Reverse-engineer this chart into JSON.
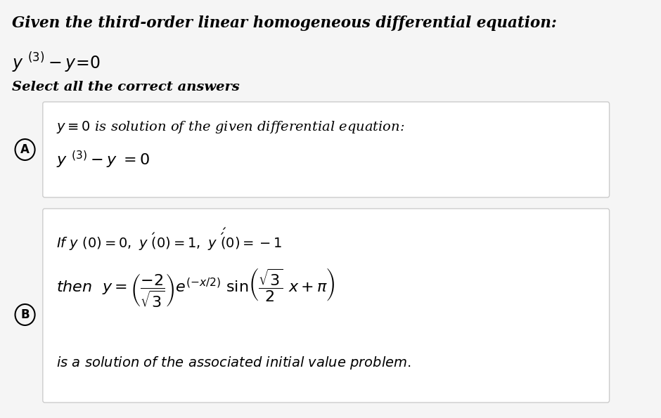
{
  "background_color": "#f5f5f5",
  "panel_color": "#ffffff",
  "title": "Given the third-order linear homogeneous differential equation:",
  "equation_main": "$y^{(3)} - y = 0$",
  "select_text": "Select all the correct answers",
  "circle_A": "A",
  "circle_B": "B",
  "panel_A_line1": "$y \\equiv 0$ is solution of the given differential equation:",
  "panel_A_line2": "$y^{(3)} - y = 0$",
  "panel_B_line1": "$If\\ y\\ (0) = 0,\\ y\\ '(0) = 1,\\ y\\ ''(0) = -1$",
  "panel_B_line2": "$then\\ \\ y = \\left(\\dfrac{-2}{\\sqrt{3}}\\right) e^{(-x/2)} \\sin\\left(\\dfrac{\\sqrt{3}}{2}\\ x + \\pi\\right)$",
  "panel_B_line3": "is a solution of the associated initial value problem.",
  "fig_width": 9.4,
  "fig_height": 5.95
}
